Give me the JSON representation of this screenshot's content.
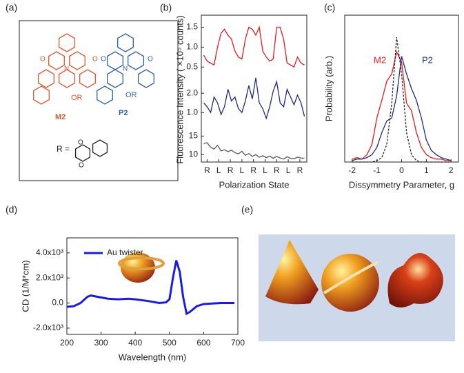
{
  "figure": {
    "panel_labels": [
      "(a)",
      "(b)",
      "(c)",
      "(d)",
      "(e)"
    ],
    "panel_a": {
      "m_label": "M2",
      "p_label": "P2",
      "or_label": "OR",
      "r_label": "R =",
      "atom_o": "O",
      "atom_n": "N"
    }
  },
  "chart_data": [
    {
      "type": "line",
      "ylabel": "Fluorescence Intensity ( ×10⁵ counts)",
      "x": [
        -0.3,
        0,
        0.3,
        0.6,
        0.9,
        1.2,
        1.5,
        1.8,
        2.1,
        2.4,
        2.7,
        3,
        3.3,
        3.6,
        3.9,
        4.2,
        4.5,
        4.8,
        5.1,
        5.4,
        5.7,
        6,
        6.3,
        6.6,
        6.9,
        7.2,
        7.5,
        7.8,
        8.1,
        8.4
      ],
      "xlim": [
        -0.5,
        8.6
      ],
      "ylim": [
        0.4,
        1.7
      ],
      "yticks": [
        0.5,
        {
          "value": 1,
          "label": "1.0"
        },
        1.5
      ],
      "series": [
        {
          "color": "#e8191c",
          "values": [
            0.8,
            0.65,
            0.6,
            0.55,
            1.0,
            1.35,
            1.45,
            1.3,
            1.2,
            0.9,
            0.75,
            0.7,
            1.2,
            1.5,
            1.45,
            1.3,
            1.5,
            0.9,
            0.75,
            0.65,
            0.7,
            1.5,
            1.5,
            1.2,
            0.6,
            0.55,
            0.5,
            0.75,
            0.6,
            0.55
          ]
        }
      ]
    },
    {
      "type": "line",
      "x": [
        -0.3,
        0,
        0.3,
        0.6,
        0.9,
        1.2,
        1.5,
        1.8,
        2.1,
        2.4,
        2.7,
        3,
        3.3,
        3.6,
        3.9,
        4.2,
        4.5,
        4.8,
        5.1,
        5.4,
        5.7,
        6,
        6.3,
        6.6,
        6.9,
        7.2,
        7.5,
        7.8,
        8.1,
        8.4
      ],
      "xlim": [
        -0.5,
        8.6
      ],
      "ylim": [
        0.4,
        2.9
      ],
      "yticks": [
        {
          "value": 1,
          "label": "1.0"
        },
        {
          "value": 2,
          "label": "2.0"
        }
      ],
      "series": [
        {
          "color": "#1f2a7a",
          "values": [
            1.5,
            1.3,
            1.0,
            1.8,
            1.5,
            0.9,
            1.3,
            2.2,
            1.6,
            1.8,
            1.2,
            1.0,
            1.6,
            2.4,
            1.7,
            2.8,
            1.5,
            1.2,
            0.7,
            1.3,
            2.1,
            2.6,
            1.5,
            1.3,
            2.2,
            1.8,
            1.4,
            1.9,
            1.5,
            0.8
          ]
        }
      ]
    },
    {
      "type": "line",
      "xlabel": "Polarization State",
      "x": [
        -0.3,
        0,
        0.3,
        0.6,
        0.9,
        1.2,
        1.5,
        1.8,
        2.1,
        2.4,
        2.7,
        3,
        3.3,
        3.6,
        3.9,
        4.2,
        4.5,
        4.8,
        5.1,
        5.4,
        5.7,
        6,
        6.3,
        6.6,
        6.9,
        7.2,
        7.5,
        7.8,
        8.1,
        8.4
      ],
      "xlim": [
        -0.5,
        8.6
      ],
      "ylim": [
        8,
        16
      ],
      "yticks": [
        10,
        15
      ],
      "xticks": [
        {
          "value": 0,
          "label": "R"
        },
        {
          "value": 1,
          "label": "L"
        },
        {
          "value": 2,
          "label": "R"
        },
        {
          "value": 3,
          "label": "L"
        },
        {
          "value": 4,
          "label": "R"
        },
        {
          "value": 5,
          "label": "L"
        },
        {
          "value": 6,
          "label": "R"
        },
        {
          "value": 7,
          "label": "L"
        },
        {
          "value": 8,
          "label": "R"
        }
      ],
      "series": [
        {
          "color": "#555555",
          "values": [
            13,
            13.2,
            12,
            11.5,
            12.5,
            11,
            11.3,
            10.8,
            11.2,
            10.5,
            10.2,
            10.9,
            9.8,
            10.3,
            9.5,
            10,
            9.3,
            9.7,
            9.2,
            9.6,
            9.0,
            9.5,
            9.1,
            8.8,
            9.4,
            9.0,
            8.9,
            9.3,
            9.1,
            9.0
          ]
        }
      ]
    },
    {
      "type": "line",
      "xlabel": "Dissymmetry Parameter, g",
      "ylabel": "Probability (arb.)",
      "x": [
        -2,
        -1.8,
        -1.6,
        -1.4,
        -1.2,
        -1,
        -0.8,
        -0.6,
        -0.4,
        -0.2,
        0,
        0.2,
        0.4,
        0.6,
        0.8,
        1,
        1.2,
        1.4,
        1.6,
        1.8,
        2
      ],
      "xlim": [
        -2.3,
        2.3
      ],
      "ylim": [
        0,
        1
      ],
      "xticks": [
        -2,
        -1,
        0,
        1,
        2
      ],
      "series": [
        {
          "name": "M2",
          "color": "#e8191c",
          "values": [
            0.02,
            0.03,
            0.02,
            0.05,
            0.12,
            0.3,
            0.42,
            0.55,
            0.6,
            0.75,
            0.68,
            0.4,
            0.35,
            0.2,
            0.1,
            0.05,
            0.03,
            0.02,
            0.02,
            0.01,
            0.01
          ]
        },
        {
          "name": "P2",
          "color": "#1f2a7a",
          "values": [
            0.01,
            0.02,
            0.02,
            0.03,
            0.05,
            0.1,
            0.2,
            0.28,
            0.3,
            0.45,
            0.72,
            0.6,
            0.5,
            0.42,
            0.3,
            0.15,
            0.08,
            0.05,
            0.03,
            0.02,
            0.01
          ]
        },
        {
          "color": "#222222",
          "dashed": true,
          "values": [
            0,
            0,
            0,
            0,
            0,
            0.01,
            0.03,
            0.12,
            0.4,
            0.85,
            0.6,
            0.2,
            0.05,
            0.01,
            0,
            0,
            0,
            0,
            0,
            0,
            0
          ]
        }
      ]
    },
    {
      "type": "line",
      "xlabel": "Wavelength (nm)",
      "ylabel": "CD (1/M*cm)",
      "x": [
        200,
        220,
        240,
        260,
        270,
        290,
        320,
        350,
        380,
        400,
        440,
        470,
        490,
        500,
        510,
        520,
        530,
        540,
        550,
        560,
        580,
        600,
        650,
        690
      ],
      "xlim": [
        200,
        700
      ],
      "ylim": [
        -2500,
        5200
      ],
      "xticks": [
        200,
        300,
        400,
        500,
        600,
        700
      ],
      "yticks": [
        {
          "value": -2000,
          "label": "-2.0x10³"
        },
        {
          "value": 0,
          "label": "0.0"
        },
        {
          "value": 2000,
          "label": "2.0x10³"
        },
        {
          "value": 4000,
          "label": "4.0x10³"
        }
      ],
      "series": [
        {
          "name": "Au twister",
          "color": "#1a1ae6",
          "values": [
            -300,
            -250,
            0,
            500,
            600,
            500,
            350,
            300,
            350,
            300,
            150,
            0,
            50,
            300,
            2000,
            3400,
            2500,
            500,
            -850,
            -700,
            -250,
            -80,
            0,
            0
          ]
        }
      ]
    }
  ]
}
